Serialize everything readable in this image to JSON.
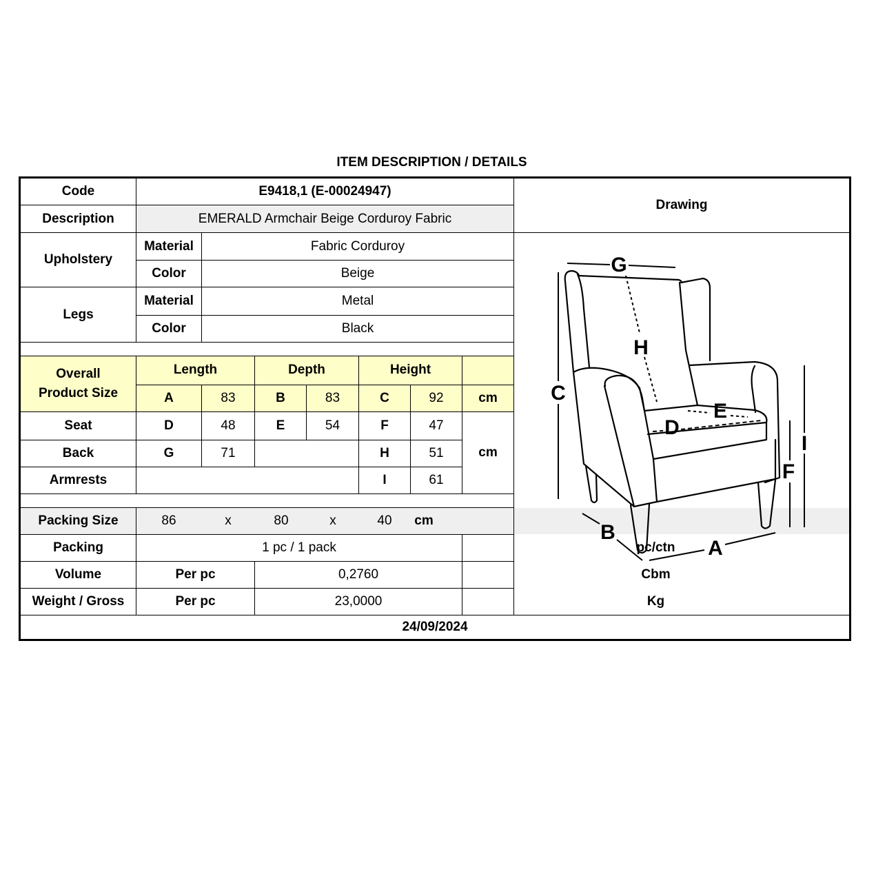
{
  "title": "ITEM DESCRIPTION / DETAILS",
  "code": {
    "label": "Code",
    "value": "E9418,1 (E-00024947)"
  },
  "description": {
    "label": "Description",
    "value": "EMERALD Armchair Beige Corduroy Fabric"
  },
  "drawing_label": "Drawing",
  "upholstery": {
    "label": "Upholstery",
    "material_label": "Material",
    "material": "Fabric Corduroy",
    "color_label": "Color",
    "color": "Beige"
  },
  "legs": {
    "label": "Legs",
    "material_label": "Material",
    "material": "Metal",
    "color_label": "Color",
    "color": "Black"
  },
  "overall": {
    "label_line1": "Overall",
    "label_line2": "Product Size",
    "length_label": "Length",
    "depth_label": "Depth",
    "height_label": "Height",
    "A": "A",
    "A_val": "83",
    "B": "B",
    "B_val": "83",
    "C": "C",
    "C_val": "92",
    "unit": "cm"
  },
  "seat": {
    "label": "Seat",
    "D": "D",
    "D_val": "48",
    "E": "E",
    "E_val": "54",
    "F": "F",
    "F_val": "47"
  },
  "back": {
    "label": "Back",
    "G": "G",
    "G_val": "71",
    "H": "H",
    "H_val": "51"
  },
  "armrests": {
    "label": "Armrests",
    "I": "I",
    "I_val": "61"
  },
  "dims_unit": "cm",
  "packing_size": {
    "label": "Packing Size",
    "l": "86",
    "x1": "x",
    "w": "80",
    "x2": "x",
    "h": "40",
    "unit": "cm"
  },
  "packing": {
    "label": "Packing",
    "value": "1 pc / 1 pack",
    "unit": "pc/ctn"
  },
  "volume": {
    "label": "Volume",
    "per": "Per pc",
    "value": "0,2760",
    "unit": "Cbm"
  },
  "weight": {
    "label": "Weight / Gross",
    "per": "Per pc",
    "value": "23,0000",
    "unit": "Kg"
  },
  "date": "24/09/2024",
  "drawing_letters": {
    "A": "A",
    "B": "B",
    "C": "C",
    "D": "D",
    "E": "E",
    "F": "F",
    "G": "G",
    "H": "H",
    "I": "I"
  },
  "colors": {
    "highlight": "#fefec8",
    "grey_row": "#efefef"
  }
}
